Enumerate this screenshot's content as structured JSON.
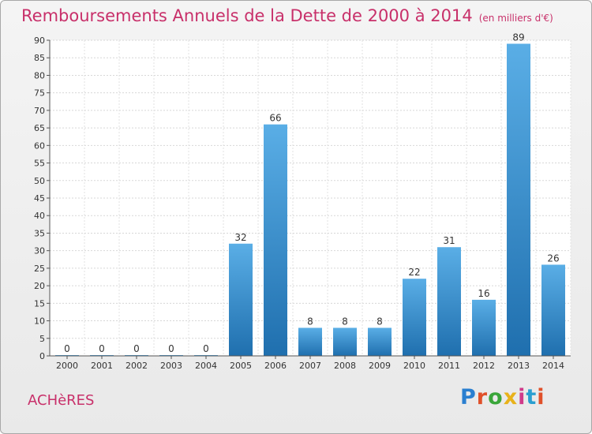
{
  "title": "Remboursements Annuels de la Dette de 2000 à 2014",
  "unit": "(en milliers d'€)",
  "commune": "ACHèRES",
  "logo": "Proxiti",
  "colors": {
    "title": "#c8306a",
    "bar_top": "#5aaee6",
    "bar_bottom": "#1f6fae"
  },
  "chart_data": {
    "type": "bar",
    "title": "Remboursements Annuels de la Dette de 2000 à 2014",
    "xlabel": "",
    "ylabel": "",
    "categories": [
      "2000",
      "2001",
      "2002",
      "2003",
      "2004",
      "2005",
      "2006",
      "2007",
      "2008",
      "2009",
      "2010",
      "2011",
      "2012",
      "2013",
      "2014"
    ],
    "values": [
      0,
      0,
      0,
      0,
      0,
      32,
      66,
      8,
      8,
      8,
      22,
      31,
      16,
      89,
      26
    ],
    "ylim": [
      0,
      90
    ],
    "yticks": [
      0,
      5,
      10,
      15,
      20,
      25,
      30,
      35,
      40,
      45,
      50,
      55,
      60,
      65,
      70,
      75,
      80,
      85,
      90
    ],
    "grid": true
  }
}
